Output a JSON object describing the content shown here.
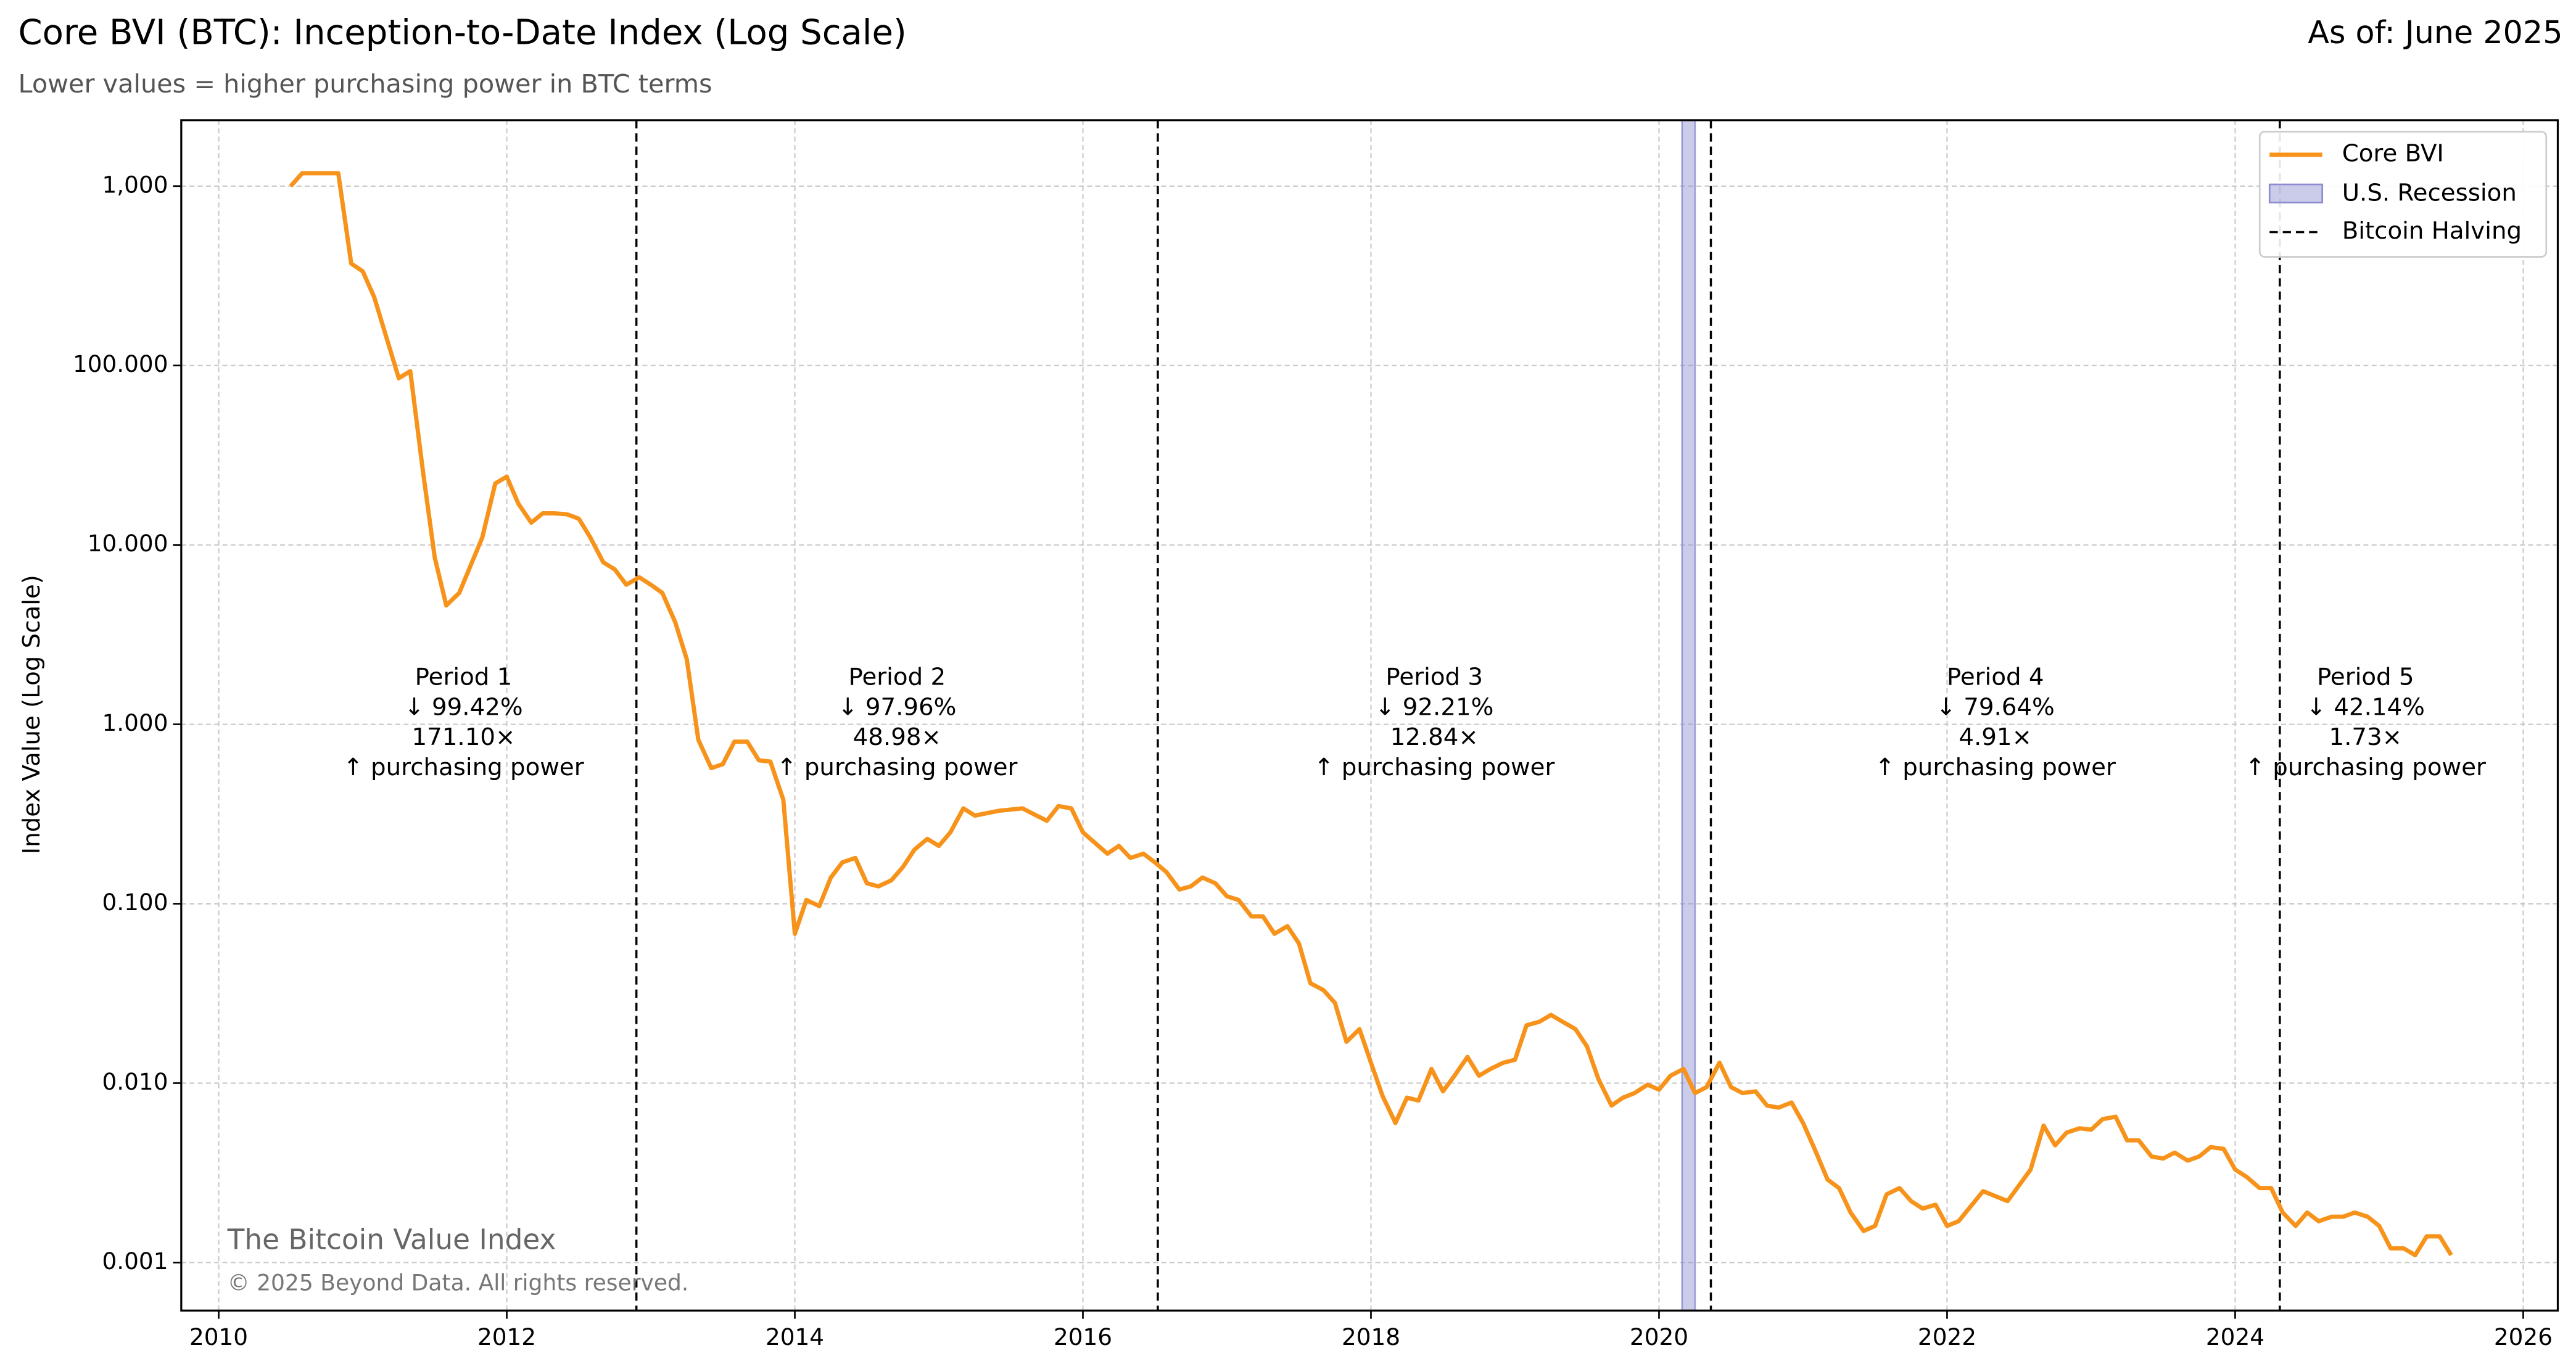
{
  "chart_data": {
    "type": "line",
    "title": "Core BVI (BTC): Inception-to-Date Index (Log Scale)",
    "subtitle": "Lower values = higher purchasing power in BTC terms",
    "as_of": "As of: June 2025",
    "y_label": "Index Value (Log Scale)",
    "watermark": "The Bitcoin Value Index",
    "copyright": "© 2025 Beyond Data. All rights reserved.",
    "log_y": true,
    "grid": true,
    "legend": "upper right",
    "xlim": [
      2009.74,
      2026.24
    ],
    "xticks": [
      2010,
      2012,
      2014,
      2016,
      2018,
      2020,
      2022,
      2024,
      2026
    ],
    "ylim": [
      0.00054,
      2330
    ],
    "yticks": [
      {
        "value": 0.001,
        "label": "0.001"
      },
      {
        "value": 0.01,
        "label": "0.010"
      },
      {
        "value": 0.1,
        "label": "0.100"
      },
      {
        "value": 1,
        "label": "1.000"
      },
      {
        "value": 10,
        "label": "10.000"
      },
      {
        "value": 100,
        "label": "100.000"
      },
      {
        "value": 1000,
        "label": "1,000"
      }
    ],
    "x": [
      2010.5,
      2010.58,
      2010.83,
      2010.92,
      2011.0,
      2011.08,
      2011.25,
      2011.33,
      2011.42,
      2011.5,
      2011.58,
      2011.67,
      2011.83,
      2011.92,
      2012.0,
      2012.08,
      2012.17,
      2012.25,
      2012.33,
      2012.42,
      2012.5,
      2012.58,
      2012.67,
      2012.75,
      2012.83,
      2012.92,
      2013.0,
      2013.08,
      2013.17,
      2013.25,
      2013.33,
      2013.42,
      2013.5,
      2013.58,
      2013.67,
      2013.75,
      2013.83,
      2013.92,
      2014.0,
      2014.08,
      2014.17,
      2014.25,
      2014.33,
      2014.42,
      2014.5,
      2014.58,
      2014.67,
      2014.75,
      2014.83,
      2014.92,
      2015.0,
      2015.08,
      2015.17,
      2015.25,
      2015.42,
      2015.58,
      2015.75,
      2015.83,
      2015.92,
      2016.0,
      2016.17,
      2016.25,
      2016.33,
      2016.42,
      2016.5,
      2016.58,
      2016.67,
      2016.75,
      2016.83,
      2016.92,
      2017.0,
      2017.08,
      2017.17,
      2017.25,
      2017.33,
      2017.42,
      2017.5,
      2017.58,
      2017.67,
      2017.75,
      2017.83,
      2017.92,
      2018.0,
      2018.08,
      2018.17,
      2018.25,
      2018.33,
      2018.42,
      2018.5,
      2018.58,
      2018.67,
      2018.75,
      2018.83,
      2018.92,
      2019.0,
      2019.08,
      2019.17,
      2019.25,
      2019.33,
      2019.42,
      2019.5,
      2019.58,
      2019.67,
      2019.75,
      2019.83,
      2019.92,
      2020.0,
      2020.08,
      2020.17,
      2020.25,
      2020.33,
      2020.42,
      2020.5,
      2020.58,
      2020.67,
      2020.75,
      2020.83,
      2020.92,
      2021.0,
      2021.08,
      2021.17,
      2021.25,
      2021.33,
      2021.42,
      2021.5,
      2021.58,
      2021.67,
      2021.75,
      2021.83,
      2021.92,
      2022.0,
      2022.08,
      2022.25,
      2022.42,
      2022.58,
      2022.67,
      2022.75,
      2022.83,
      2022.92,
      2023.0,
      2023.08,
      2023.17,
      2023.25,
      2023.33,
      2023.42,
      2023.5,
      2023.58,
      2023.67,
      2023.75,
      2023.83,
      2023.92,
      2024.0,
      2024.08,
      2024.17,
      2024.25,
      2024.33,
      2024.42,
      2024.5,
      2024.58,
      2024.67,
      2024.75,
      2024.83,
      2024.92,
      2025.0,
      2025.08,
      2025.17,
      2025.25,
      2025.33,
      2025.42,
      2025.5
    ],
    "series": [
      {
        "name": "Core BVI",
        "color": "#f7931a",
        "values": [
          1000,
          1180,
          1180,
          370,
          335,
          240,
          85,
          93,
          25,
          8.5,
          4.6,
          5.4,
          11,
          22,
          24,
          17,
          13.3,
          15,
          15,
          14.8,
          14,
          11,
          8,
          7.3,
          6,
          6.6,
          6,
          5.4,
          3.7,
          2.3,
          0.82,
          0.57,
          0.6,
          0.8,
          0.8,
          0.63,
          0.62,
          0.38,
          0.068,
          0.105,
          0.097,
          0.14,
          0.17,
          0.18,
          0.13,
          0.125,
          0.135,
          0.16,
          0.2,
          0.23,
          0.21,
          0.25,
          0.34,
          0.31,
          0.33,
          0.34,
          0.29,
          0.35,
          0.34,
          0.25,
          0.19,
          0.21,
          0.18,
          0.19,
          0.17,
          0.15,
          0.12,
          0.125,
          0.14,
          0.13,
          0.11,
          0.105,
          0.085,
          0.085,
          0.068,
          0.075,
          0.06,
          0.036,
          0.033,
          0.028,
          0.017,
          0.02,
          0.013,
          0.0085,
          0.006,
          0.0083,
          0.008,
          0.012,
          0.009,
          0.011,
          0.014,
          0.011,
          0.012,
          0.013,
          0.0135,
          0.021,
          0.022,
          0.024,
          0.022,
          0.02,
          0.016,
          0.0105,
          0.0075,
          0.0083,
          0.0088,
          0.0098,
          0.0092,
          0.011,
          0.012,
          0.0088,
          0.0095,
          0.013,
          0.0095,
          0.0088,
          0.009,
          0.0075,
          0.0073,
          0.0078,
          0.006,
          0.0043,
          0.0029,
          0.0026,
          0.0019,
          0.0015,
          0.0016,
          0.0024,
          0.0026,
          0.0022,
          0.002,
          0.0021,
          0.0016,
          0.0017,
          0.0025,
          0.0022,
          0.0033,
          0.0058,
          0.0045,
          0.0053,
          0.0056,
          0.0055,
          0.0063,
          0.0065,
          0.0048,
          0.0048,
          0.0039,
          0.0038,
          0.0041,
          0.0037,
          0.0039,
          0.0044,
          0.0043,
          0.0033,
          0.003,
          0.0026,
          0.0026,
          0.0019,
          0.0016,
          0.0019,
          0.0017,
          0.0018,
          0.0018,
          0.0019,
          0.0018,
          0.0016,
          0.0012,
          0.0012,
          0.0011,
          0.0014,
          0.0014,
          0.0011
        ]
      }
    ],
    "recession": {
      "name": "U.S. Recession",
      "color": "#8c8cd0",
      "range": [
        2020.16,
        2020.25
      ]
    },
    "halvings": {
      "name": "Bitcoin Halving",
      "x": [
        2012.9,
        2016.52,
        2020.36,
        2024.31
      ]
    },
    "periods": [
      {
        "title": "Period 1",
        "change": "↓ 99.42%",
        "multiple": "171.10×",
        "note": "↑ purchasing power"
      },
      {
        "title": "Period 2",
        "change": "↓ 97.96%",
        "multiple": "48.98×",
        "note": "↑ purchasing power"
      },
      {
        "title": "Period 3",
        "change": "↓ 92.21%",
        "multiple": "12.84×",
        "note": "↑ purchasing power"
      },
      {
        "title": "Period 4",
        "change": "↓ 79.64%",
        "multiple": "4.91×",
        "note": "↑ purchasing power"
      },
      {
        "title": "Period 5",
        "change": "↓ 42.14%",
        "multiple": "1.73×",
        "note": "↑ purchasing power"
      }
    ]
  }
}
